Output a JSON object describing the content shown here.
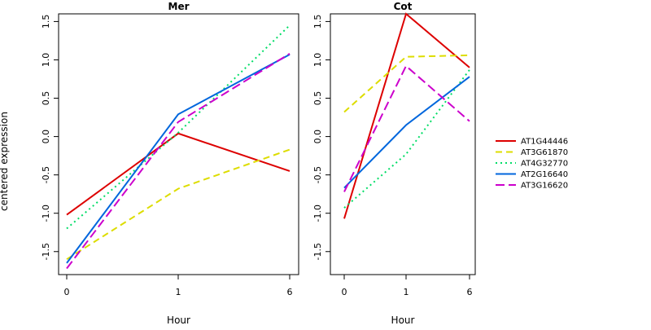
{
  "figure": {
    "ylabel": "centered expression"
  },
  "chart_data": [
    {
      "type": "line",
      "title": "Mer",
      "xlabel": "Hour",
      "categories": [
        "0",
        "1",
        "6"
      ],
      "ylim": [
        -1.8,
        1.6
      ],
      "yticks": [
        -1.5,
        -1.0,
        -0.5,
        0.0,
        0.5,
        1.0,
        1.5
      ],
      "ytick_labels": [
        "-1.5",
        "-1.0",
        "-0.5",
        "0.0",
        "0.5",
        "1.0",
        "1.5"
      ],
      "grid": false,
      "series": [
        {
          "name": "AT1G44446",
          "color": "#dd0000",
          "dash": "solid",
          "values": [
            -1.02,
            0.04,
            -0.45
          ]
        },
        {
          "name": "AT3G61870",
          "color": "#dddd00",
          "dash": "dashed",
          "values": [
            -1.6,
            -0.68,
            -0.17
          ]
        },
        {
          "name": "AT4G32770",
          "color": "#00dd66",
          "dash": "dotted",
          "values": [
            -1.2,
            0.05,
            1.45
          ]
        },
        {
          "name": "AT2G16640",
          "color": "#0066dd",
          "dash": "solid",
          "values": [
            -1.65,
            0.29,
            1.07
          ]
        },
        {
          "name": "AT3G16620",
          "color": "#cc00cc",
          "dash": "longdash",
          "values": [
            -1.72,
            0.19,
            1.08
          ]
        }
      ]
    },
    {
      "type": "line",
      "title": "Cot",
      "xlabel": "Hour",
      "categories": [
        "0",
        "1",
        "6"
      ],
      "ylim": [
        -1.8,
        1.6
      ],
      "yticks": [
        -1.5,
        -1.0,
        -0.5,
        0.0,
        0.5,
        1.0,
        1.5
      ],
      "ytick_labels": [
        "-1.5",
        "-1.0",
        "-0.5",
        "0.0",
        "0.5",
        "1.0",
        "1.5"
      ],
      "grid": false,
      "series": [
        {
          "name": "AT1G44446",
          "color": "#dd0000",
          "dash": "solid",
          "values": [
            -1.07,
            1.6,
            0.9
          ]
        },
        {
          "name": "AT3G61870",
          "color": "#dddd00",
          "dash": "dashed",
          "values": [
            0.32,
            1.04,
            1.06
          ]
        },
        {
          "name": "AT4G32770",
          "color": "#00dd66",
          "dash": "dotted",
          "values": [
            -0.93,
            -0.23,
            0.87
          ]
        },
        {
          "name": "AT2G16640",
          "color": "#0066dd",
          "dash": "solid",
          "values": [
            -0.67,
            0.15,
            0.78
          ]
        },
        {
          "name": "AT3G16620",
          "color": "#cc00cc",
          "dash": "longdash",
          "values": [
            -0.72,
            0.92,
            0.2
          ]
        }
      ]
    }
  ],
  "legend": {
    "placement": "right",
    "items": [
      {
        "label": "AT1G44446",
        "color": "#dd0000",
        "dash": "solid"
      },
      {
        "label": "AT3G61870",
        "color": "#dddd00",
        "dash": "dashed"
      },
      {
        "label": "AT4G32770",
        "color": "#00dd66",
        "dash": "dotted"
      },
      {
        "label": "AT2G16640",
        "color": "#0066dd",
        "dash": "solid"
      },
      {
        "label": "AT3G16620",
        "color": "#cc00cc",
        "dash": "longdash"
      }
    ]
  }
}
